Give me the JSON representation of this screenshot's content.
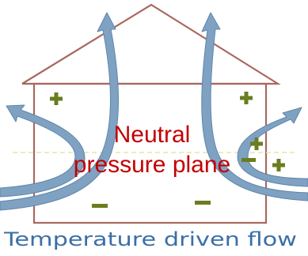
{
  "diagram": {
    "center_label_line1": "Neutral",
    "center_label_line2": "pressure plane",
    "caption": "Temperature driven flow",
    "colors": {
      "house_outline": "#a9685e",
      "arrow_fill": "#7fa2c2",
      "arrow_stroke": "#5f86ab",
      "plus_sign": "#6a7d1f",
      "minus_sign": "#6a7d1f",
      "neutral_line": "#e4e8a6",
      "label_text": "#c20000",
      "caption_text": "#3b6fa8"
    },
    "signs": {
      "plus": "+",
      "minus": "−"
    }
  }
}
